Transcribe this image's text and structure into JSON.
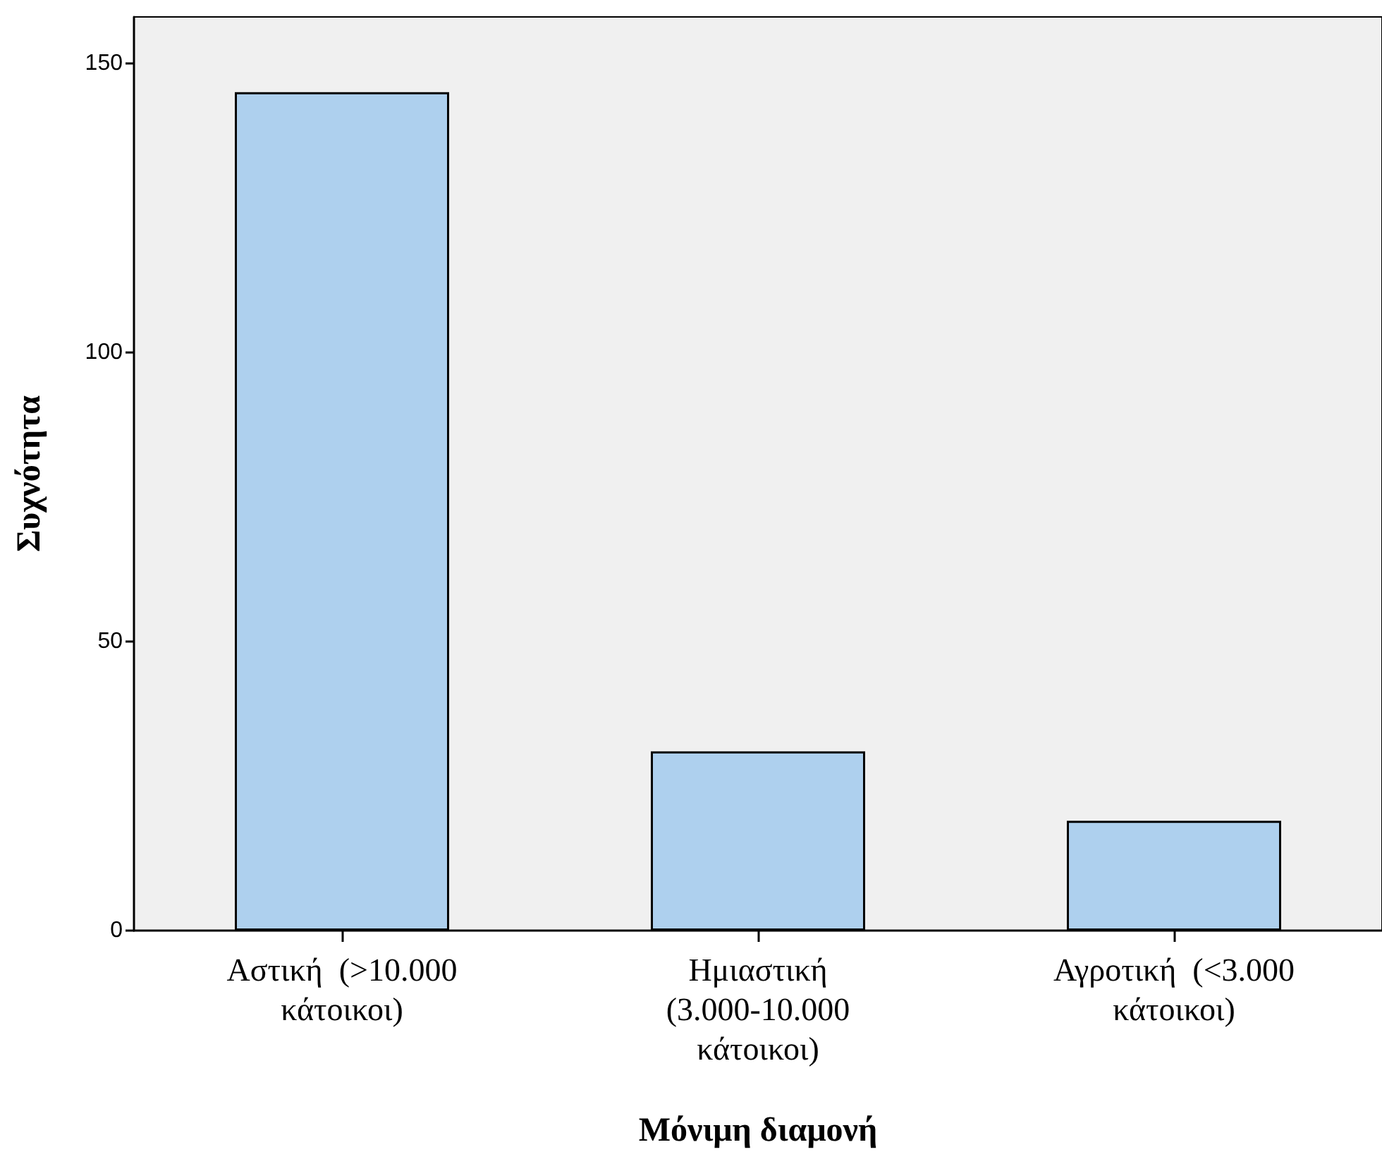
{
  "chart_data": {
    "type": "bar",
    "xlabel": "Μόνιμη διαμονή",
    "ylabel": "Συχνότητα",
    "categories": [
      "Αστική  (>10.000 κάτοικοι)",
      "Ημιαστική (3.000-10.000 κάτοικοι)",
      "Αγροτική  (<3.000 κάτοικοι)"
    ],
    "values": [
      145,
      31,
      19
    ],
    "color": "#aed0ee",
    "ylim": [
      0,
      158
    ],
    "yticks": [
      0,
      50,
      100,
      150
    ],
    "grid": false
  }
}
